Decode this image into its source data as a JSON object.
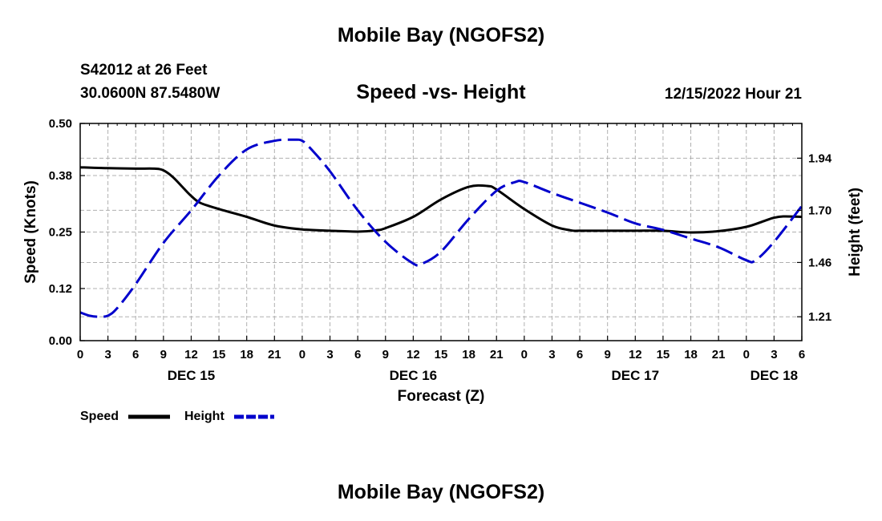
{
  "header": {
    "title": "Mobile Bay (NGOFS2)",
    "station": "S42012 at 26 Feet",
    "coords": "30.0600N  87.5480W",
    "subtitle": "Speed -vs- Height",
    "datetime": "12/15/2022 Hour 21"
  },
  "footer": {
    "title": "Mobile Bay (NGOFS2)"
  },
  "chart_data": {
    "type": "line",
    "title": "Speed -vs- Height",
    "xlabel": "Forecast (Z)",
    "ylabel": "Speed (Knots)",
    "y2label": "Height (feet)",
    "xlim": [
      0,
      78
    ],
    "ylim": [
      0,
      0.5
    ],
    "y2lim": [
      1.1,
      2.1
    ],
    "yticks": [
      0,
      0.12,
      0.25,
      0.38,
      0.5
    ],
    "ytick_labels": [
      "0.00",
      "0.12",
      "0.25",
      "0.38",
      "0.50"
    ],
    "y2ticks": [
      1.21,
      1.46,
      1.7,
      1.94
    ],
    "y2tick_labels": [
      "1.21",
      "1.46",
      "1.70",
      "1.94"
    ],
    "xtick_labels": [
      "0",
      "3",
      "6",
      "9",
      "12",
      "15",
      "18",
      "21",
      "0",
      "3",
      "6",
      "9",
      "12",
      "15",
      "18",
      "21",
      "0",
      "3",
      "6",
      "9",
      "12",
      "15",
      "18",
      "21",
      "0",
      "3",
      "6"
    ],
    "day_labels": [
      {
        "label": "DEC 15",
        "x": 12
      },
      {
        "label": "DEC 16",
        "x": 36
      },
      {
        "label": "DEC 17",
        "x": 60
      },
      {
        "label": "DEC 18",
        "x": 75
      }
    ],
    "grid": true,
    "legend_position": "bottom-left",
    "series": [
      {
        "name": "Speed",
        "axis": "left",
        "color": "#000000",
        "dash": "solid",
        "x": [
          0,
          3,
          6,
          8,
          9,
          10,
          11,
          12,
          13,
          15,
          18,
          21,
          24,
          27,
          30,
          32,
          33,
          36,
          39,
          42,
          44,
          45,
          48,
          51,
          53,
          54,
          57,
          60,
          63,
          66,
          69,
          72,
          74,
          75,
          76,
          78
        ],
        "y": [
          0.399,
          0.397,
          0.396,
          0.396,
          0.392,
          0.377,
          0.355,
          0.333,
          0.317,
          0.303,
          0.285,
          0.265,
          0.256,
          0.253,
          0.251,
          0.254,
          0.259,
          0.285,
          0.325,
          0.354,
          0.356,
          0.348,
          0.303,
          0.265,
          0.254,
          0.253,
          0.253,
          0.253,
          0.253,
          0.249,
          0.252,
          0.262,
          0.276,
          0.283,
          0.286,
          0.285
        ]
      },
      {
        "name": "Height",
        "axis": "right",
        "color": "#0000cc",
        "dash": "dashed",
        "x": [
          0,
          1,
          2,
          3,
          4,
          6,
          9,
          12,
          15,
          18,
          21,
          23,
          24,
          25,
          27,
          30,
          33,
          36,
          37,
          39,
          42,
          45,
          47,
          48,
          51,
          54,
          57,
          60,
          63,
          66,
          69,
          72,
          73,
          75,
          78
        ],
        "y": [
          1.23,
          1.215,
          1.21,
          1.215,
          1.25,
          1.36,
          1.55,
          1.7,
          1.86,
          1.98,
          2.02,
          2.025,
          2.02,
          1.98,
          1.88,
          1.7,
          1.555,
          1.455,
          1.455,
          1.51,
          1.66,
          1.79,
          1.83,
          1.83,
          1.78,
          1.735,
          1.69,
          1.64,
          1.61,
          1.57,
          1.53,
          1.47,
          1.47,
          1.555,
          1.72
        ]
      }
    ]
  }
}
